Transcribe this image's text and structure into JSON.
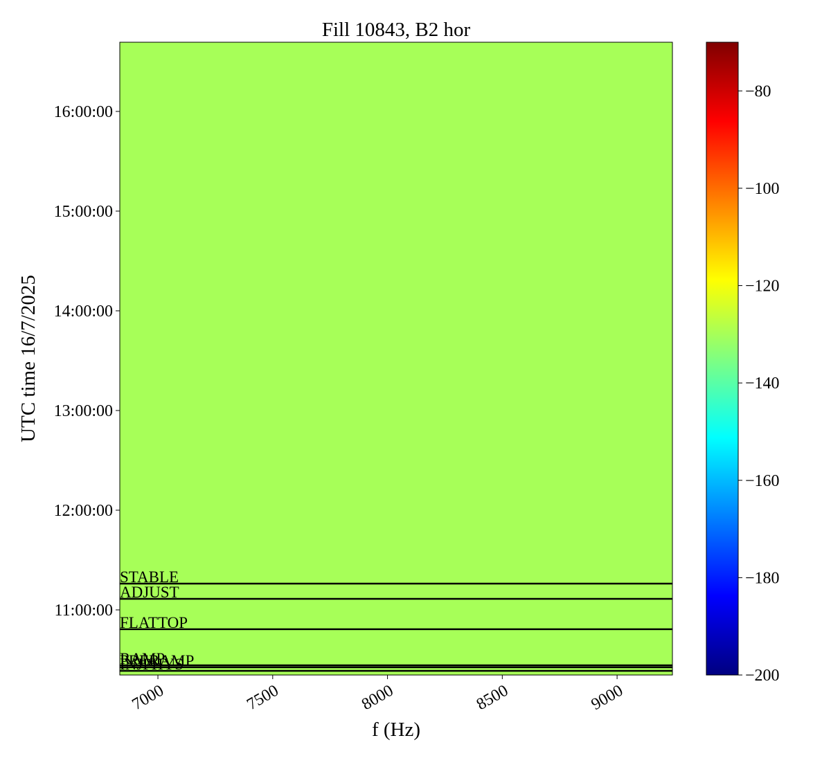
{
  "chart_data": {
    "type": "spectrogram",
    "title": "Fill 10843, B2 hor",
    "xlabel": "f (Hz)",
    "ylabel": "UTC time 16/7/2025",
    "xlim": [
      6834,
      9241
    ],
    "xticks": [
      7000,
      7500,
      8000,
      8500,
      9000
    ],
    "ylim": [
      10.347,
      16.694
    ],
    "yticks": [
      {
        "value": 11,
        "label": "11:00:00"
      },
      {
        "value": 12,
        "label": "12:00:00"
      },
      {
        "value": 13,
        "label": "13:00:00"
      },
      {
        "value": 14,
        "label": "14:00:00"
      },
      {
        "value": 15,
        "label": "15:00:00"
      },
      {
        "value": 16,
        "label": "16:00:00"
      }
    ],
    "colormap": "jet",
    "background_level": -130,
    "clim": [
      -200,
      -70
    ],
    "cticks": [
      {
        "value": -80,
        "label": "−80"
      },
      {
        "value": -100,
        "label": "−100"
      },
      {
        "value": -120,
        "label": "−120"
      },
      {
        "value": -140,
        "label": "−140"
      },
      {
        "value": -160,
        "label": "−160"
      },
      {
        "value": -180,
        "label": "−180"
      },
      {
        "value": -200,
        "label": "−200"
      }
    ],
    "events": [
      {
        "name": "STABLE",
        "time": 11.264
      },
      {
        "name": "ADJUST",
        "time": 11.111
      },
      {
        "name": "FLATTOP",
        "time": 10.806
      },
      {
        "name": "RAMP",
        "time": 10.444
      },
      {
        "name": "PRERAMP",
        "time": 10.424
      },
      {
        "name": "INJPHYS",
        "time": 10.389
      }
    ]
  }
}
